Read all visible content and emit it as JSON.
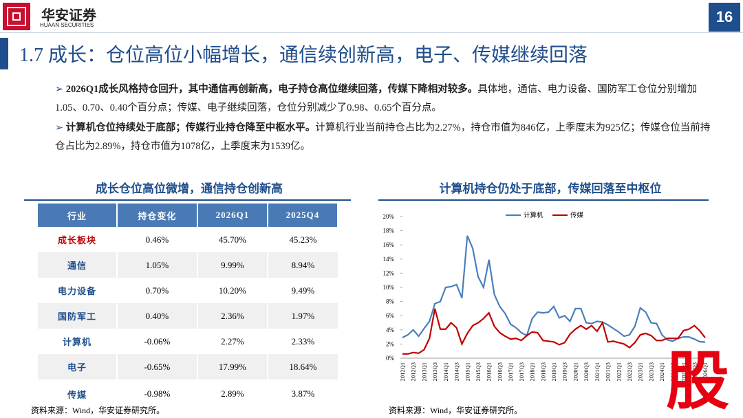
{
  "header": {
    "logo_cn": "华安证券",
    "logo_en": "HUAAN SECURITIES",
    "page": "16",
    "title": "1.7 成长：仓位高位小幅增长，通信续创新高，电子、传媒继续回落"
  },
  "bullets": [
    {
      "bold": "2026Q1成长风格持仓回升，其中通信再创新高，电子持仓高位继续回落，传媒下降相对较多。",
      "text": "具体地，通信、电力设备、国防军工仓位分别增加1.05、0.70、0.40个百分点；传媒、电子继续回落，仓位分别减少了0.98、0.65个百分点。"
    },
    {
      "bold": "计算机仓位持续处于底部；传媒行业持仓降至中枢水平。",
      "text": "计算机行业当前持仓占比为2.27%，持仓市值为846亿，上季度末为925亿；传媒仓位当前持仓占比为2.89%，持仓市值为1078亿，上季度末为1539亿。"
    }
  ],
  "table": {
    "title": "成长仓位高位微增，通信持仓创新高",
    "columns": [
      "行业",
      "持仓变化",
      "2026Q1",
      "2025Q4"
    ],
    "rows": [
      [
        "成长板块",
        "0.46%",
        "45.70%",
        "45.23%"
      ],
      [
        "通信",
        "1.05%",
        "9.99%",
        "8.94%"
      ],
      [
        "电力设备",
        "0.70%",
        "10.20%",
        "9.49%"
      ],
      [
        "国防军工",
        "0.40%",
        "2.36%",
        "1.97%"
      ],
      [
        "计算机",
        "-0.06%",
        "2.27%",
        "2.33%"
      ],
      [
        "电子",
        "-0.65%",
        "17.99%",
        "18.64%"
      ],
      [
        "传媒",
        "-0.98%",
        "2.89%",
        "3.87%"
      ]
    ],
    "source": "资料来源：Wind，华安证券研究所。"
  },
  "chart_data": {
    "type": "line",
    "title": "计算机持仓仍处于底部，传媒回落至中枢位",
    "source": "资料来源：Wind，华安证券研究所。",
    "categories": [
      "2012Q1",
      null,
      "2012Q3",
      null,
      "2013Q1",
      null,
      "2013Q3",
      null,
      "2014Q1",
      null,
      "2014Q3",
      null,
      "2015Q1",
      null,
      "2015Q3",
      null,
      "2016Q1",
      null,
      "2016Q3",
      null,
      "2017Q1",
      null,
      "2017Q3",
      null,
      "2018Q1",
      null,
      "2018Q3",
      null,
      "2019Q1",
      null,
      "2019Q3",
      null,
      "2020Q1",
      null,
      "2020Q3",
      null,
      "2021Q1",
      null,
      "2021Q3",
      null,
      "2022Q1",
      null,
      "2022Q3",
      null,
      "2023Q1",
      null,
      "2023Q3",
      null,
      "2024Q1",
      null,
      "2024Q3",
      null,
      "2025Q1",
      null,
      "2025Q3",
      null,
      "2026Q1"
    ],
    "series": [
      {
        "name": "计算机",
        "color": "#4a7ebb",
        "values": [
          2.9,
          3.3,
          4.0,
          3.1,
          4.2,
          5.2,
          7.7,
          8.0,
          10.0,
          10.1,
          10.4,
          8.5,
          17.3,
          15.5,
          11.5,
          10.0,
          13.9,
          9.0,
          7.3,
          6.3,
          4.8,
          4.3,
          3.6,
          3.2,
          5.6,
          6.5,
          6.4,
          6.5,
          7.3,
          5.7,
          6.0,
          5.2,
          7.0,
          7.0,
          5.0,
          4.9,
          5.2,
          5.1,
          4.7,
          4.2,
          3.7,
          3.1,
          3.3,
          4.5,
          7.1,
          6.5,
          5.0,
          4.9,
          3.3,
          2.6,
          2.4,
          2.8,
          3.0,
          3.0,
          2.7,
          2.33,
          2.27
        ]
      },
      {
        "name": "传媒",
        "color": "#c00000",
        "values": [
          0.6,
          0.6,
          0.8,
          0.7,
          1.2,
          2.8,
          7.0,
          4.1,
          4.1,
          5.0,
          4.3,
          2.0,
          3.5,
          4.6,
          5.0,
          5.6,
          6.4,
          4.5,
          3.6,
          3.1,
          2.7,
          2.8,
          2.5,
          3.2,
          3.7,
          3.6,
          2.5,
          2.4,
          2.3,
          1.9,
          2.2,
          3.4,
          4.1,
          4.6,
          4.1,
          4.6,
          3.8,
          5.0,
          2.3,
          2.4,
          2.2,
          2.0,
          1.5,
          2.2,
          3.3,
          3.5,
          3.2,
          2.5,
          2.5,
          2.8,
          2.8,
          2.8,
          3.9,
          4.1,
          4.6,
          3.87,
          2.89
        ]
      }
    ],
    "ylim": [
      0,
      20
    ],
    "yticks": [
      {
        "value": 0,
        "label": "0%"
      },
      {
        "value": 2,
        "label": "2%"
      },
      {
        "value": 4,
        "label": "4%"
      },
      {
        "value": 6,
        "label": "6%"
      },
      {
        "value": 8,
        "label": "8%"
      },
      {
        "value": 10,
        "label": "10%"
      },
      {
        "value": 12,
        "label": "12%"
      },
      {
        "value": 14,
        "label": "14%"
      },
      {
        "value": 16,
        "label": "16%"
      },
      {
        "value": 18,
        "label": "18%"
      },
      {
        "value": 20,
        "label": "20%"
      }
    ],
    "legend": "top"
  },
  "watermark": "股"
}
